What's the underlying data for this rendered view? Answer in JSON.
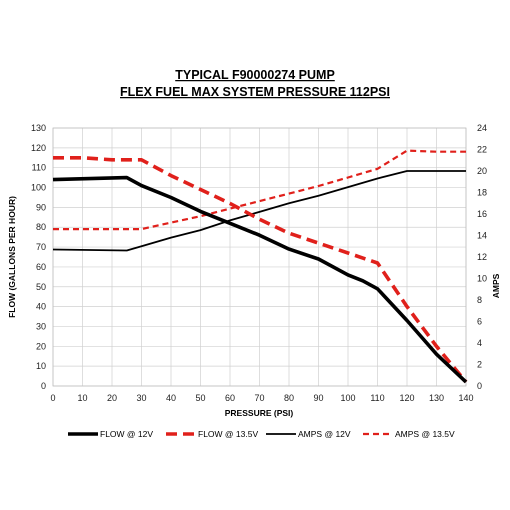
{
  "chart_data": {
    "type": "line",
    "title_lines": [
      "TYPICAL F90000274 PUMP",
      "FLEX FUEL MAX SYSTEM PRESSURE 112PSI"
    ],
    "xlabel": "PRESSURE (PSI)",
    "ylabel_left": "FLOW (GALLONS PER HOUR)",
    "ylabel_right": "AMPS",
    "xlim": [
      0,
      140
    ],
    "ylim_left": [
      0,
      130
    ],
    "ylim_right": [
      0,
      24
    ],
    "x_ticks": [
      0,
      10,
      20,
      30,
      40,
      50,
      60,
      70,
      80,
      90,
      100,
      110,
      120,
      130,
      140
    ],
    "y_left_ticks": [
      0,
      10,
      20,
      30,
      40,
      50,
      60,
      70,
      80,
      90,
      100,
      110,
      120,
      130
    ],
    "y_right_ticks": [
      0,
      2,
      4,
      6,
      8,
      10,
      12,
      14,
      16,
      18,
      20,
      22,
      24
    ],
    "grid": true,
    "legend_position": "bottom",
    "series": [
      {
        "name": "FLOW @ 12V",
        "axis": "left",
        "color": "#000000",
        "style": "solid-thick",
        "x": [
          0,
          25,
          30,
          40,
          50,
          60,
          70,
          80,
          90,
          100,
          105,
          110,
          120,
          130,
          140
        ],
        "y": [
          104,
          105,
          101,
          95,
          88,
          82,
          76,
          69,
          64,
          56,
          53,
          49,
          33,
          16,
          2
        ]
      },
      {
        "name": "FLOW @ 13.5V",
        "axis": "left",
        "color": "#e0201b",
        "style": "dashed-thick",
        "x": [
          0,
          10,
          20,
          30,
          40,
          50,
          60,
          70,
          80,
          90,
          100,
          110,
          120,
          130,
          140
        ],
        "y": [
          115,
          115,
          114,
          114,
          106,
          99,
          92,
          84,
          77,
          72,
          67,
          62,
          40,
          20,
          2
        ]
      },
      {
        "name": "AMPS @ 12V",
        "axis": "right",
        "color": "#000000",
        "style": "solid",
        "x": [
          0,
          25,
          30,
          40,
          50,
          60,
          70,
          80,
          90,
          100,
          110,
          120,
          125,
          140
        ],
        "y": [
          12.7,
          12.6,
          13.0,
          13.8,
          14.5,
          15.4,
          16.2,
          17.0,
          17.7,
          18.5,
          19.3,
          20.0,
          20.0,
          20.0
        ]
      },
      {
        "name": "AMPS @ 13.5V",
        "axis": "right",
        "color": "#e0201b",
        "style": "dashed",
        "x": [
          0,
          20,
          30,
          40,
          50,
          60,
          70,
          80,
          90,
          100,
          110,
          120,
          130,
          140
        ],
        "y": [
          14.6,
          14.6,
          14.6,
          15.2,
          15.8,
          16.5,
          17.2,
          17.9,
          18.6,
          19.4,
          20.2,
          21.9,
          21.8,
          21.8
        ]
      }
    ]
  }
}
